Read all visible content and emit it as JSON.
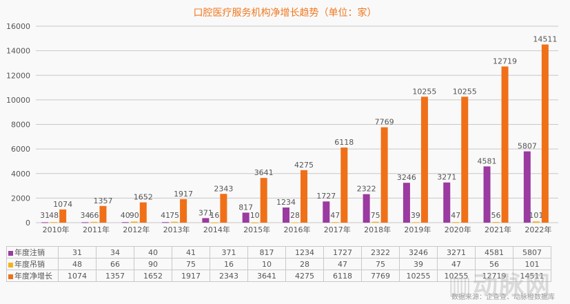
{
  "chart_data": {
    "type": "bar",
    "title": "口腔医疗服务机构净增长趋势（单位：家）",
    "categories": [
      "2010年",
      "2011年",
      "2012年",
      "2013年",
      "2014年",
      "2015年",
      "2016年",
      "2017年",
      "2018年",
      "2019年",
      "2020年",
      "2021年",
      "2022年"
    ],
    "series": [
      {
        "name": "年度注销",
        "color": "#9b3aa0",
        "values": [
          31,
          34,
          40,
          41,
          371,
          817,
          1234,
          1727,
          2322,
          3246,
          3271,
          4581,
          5807
        ]
      },
      {
        "name": "年度吊销",
        "color": "#f5b21b",
        "values": [
          48,
          66,
          90,
          75,
          16,
          10,
          28,
          47,
          75,
          39,
          47,
          56,
          101
        ]
      },
      {
        "name": "年度净增长",
        "color": "#f07018",
        "values": [
          1074,
          1357,
          1652,
          1917,
          2343,
          3641,
          4275,
          6118,
          7769,
          10255,
          10255,
          12719,
          14511
        ]
      }
    ],
    "ylim": [
      0,
      16000
    ],
    "yticks": [
      0,
      2000,
      4000,
      6000,
      8000,
      10000,
      12000,
      14000,
      16000
    ],
    "grid": true,
    "legend": "data table below chart"
  },
  "source": "数据来源：企查查、动脉橙数据库",
  "watermark": "动脉网"
}
